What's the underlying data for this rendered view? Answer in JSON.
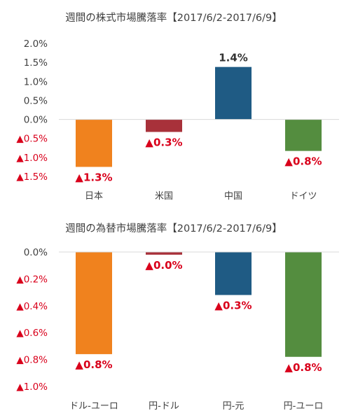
{
  "colors": {
    "orange": "#f0821e",
    "red": "#a8313a",
    "blue": "#1f5b84",
    "green": "#548d3f",
    "negative_text": "#d9001b",
    "text": "#404040"
  },
  "chart_data": [
    {
      "type": "bar",
      "title": "週間の株式市場騰落率【2017/6/2-2017/6/9】",
      "categories": [
        "日本",
        "米国",
        "中国",
        "ドイツ"
      ],
      "values": [
        -1.25,
        -0.33,
        1.38,
        -0.83
      ],
      "data_labels": [
        "▲1.3%",
        "▲0.3%",
        "1.4%",
        "▲0.8%"
      ],
      "bar_colors": [
        "#f0821e",
        "#a8313a",
        "#1f5b84",
        "#548d3f"
      ],
      "ylim": [
        -1.5,
        2.0
      ],
      "yticks": [
        2.0,
        1.5,
        1.0,
        0.5,
        0.0,
        -0.5,
        -1.0,
        -1.5
      ],
      "ytick_labels": [
        "2.0%",
        "1.5%",
        "1.0%",
        "0.5%",
        "0.0%",
        "▲0.5%",
        "▲1.0%",
        "▲1.5%"
      ],
      "grid": false,
      "legend": "none"
    },
    {
      "type": "bar",
      "title": "週間の為替市場騰落率【2017/6/2-2017/6/9】",
      "categories": [
        "ドル-ユーロ",
        "円-ドル",
        "円-元",
        "円-ユーロ"
      ],
      "values": [
        -0.76,
        -0.02,
        -0.32,
        -0.78
      ],
      "data_labels": [
        "▲0.8%",
        "▲0.0%",
        "▲0.3%",
        "▲0.8%"
      ],
      "bar_colors": [
        "#f0821e",
        "#a8313a",
        "#1f5b84",
        "#548d3f"
      ],
      "ylim": [
        -1.0,
        0.0
      ],
      "yticks": [
        0.0,
        -0.2,
        -0.4,
        -0.6,
        -0.8,
        -1.0
      ],
      "ytick_labels": [
        "0.0%",
        "▲0.2%",
        "▲0.4%",
        "▲0.6%",
        "▲0.8%",
        "▲1.0%"
      ],
      "grid": false,
      "legend": "none"
    }
  ]
}
